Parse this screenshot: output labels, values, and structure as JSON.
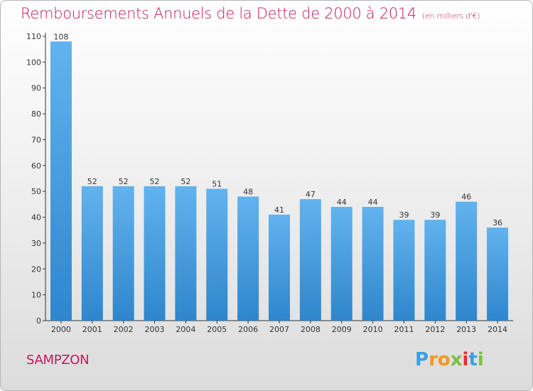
{
  "title": "Remboursements Annuels de la Dette de 2000 à 2014",
  "unit": "(en milliers d'€)",
  "commune": "SAMPZON",
  "logo": {
    "letters": [
      "P",
      "r",
      "o",
      "x",
      "i",
      "t",
      "i"
    ],
    "colors": [
      "#3aa0e0",
      "#f29a1a",
      "#f29a1a",
      "#7ac143",
      "#e8312a",
      "#3aa0e0",
      "#7ac143"
    ]
  },
  "colors": {
    "bar": "#4a9fe0",
    "accent": "#c2185b"
  },
  "chart_data": {
    "type": "bar",
    "categories": [
      "2000",
      "2001",
      "2002",
      "2003",
      "2004",
      "2005",
      "2006",
      "2007",
      "2008",
      "2009",
      "2010",
      "2011",
      "2012",
      "2013",
      "2014"
    ],
    "values": [
      108,
      52,
      52,
      52,
      52,
      51,
      48,
      41,
      47,
      44,
      44,
      39,
      39,
      46,
      36
    ],
    "ylim": [
      0,
      110
    ],
    "yticks": [
      0,
      10,
      20,
      30,
      40,
      50,
      60,
      70,
      80,
      90,
      100,
      110
    ],
    "grid": false,
    "data_labels": true
  }
}
